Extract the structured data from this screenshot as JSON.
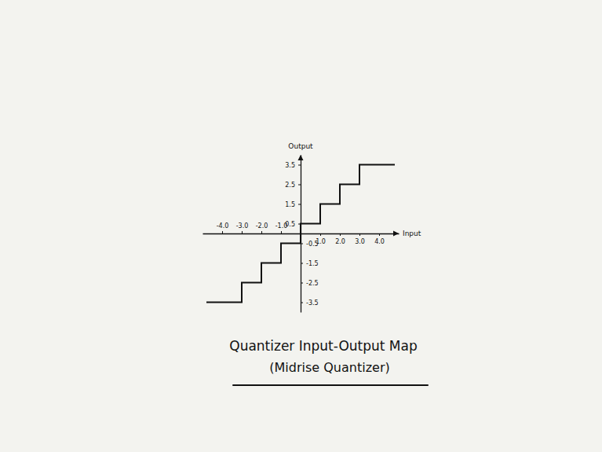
{
  "chart_data": {
    "type": "line",
    "title": "Quantizer Input-Output Map",
    "subtitle": "(Midrise Quantizer)",
    "xlabel": "Input",
    "ylabel": "Output",
    "x": [
      -4.8,
      -3,
      -3,
      -2,
      -2,
      -1,
      -1,
      0,
      0,
      1,
      1,
      2,
      2,
      3,
      3,
      4.8
    ],
    "values": [
      -3.5,
      -3.5,
      -2.5,
      -2.5,
      -1.5,
      -1.5,
      -0.5,
      -0.5,
      0.5,
      0.5,
      1.5,
      1.5,
      2.5,
      2.5,
      3.5,
      3.5
    ],
    "color": "#111111",
    "line_style": "solid",
    "xlim": [
      -5,
      5
    ],
    "ylim": [
      -4,
      4
    ],
    "xticks": [
      {
        "value": -4,
        "label": "-4.0"
      },
      {
        "value": -3,
        "label": "-3.0"
      },
      {
        "value": -2,
        "label": "-2.0"
      },
      {
        "value": -1,
        "label": "-1.0"
      },
      {
        "value": 1,
        "label": "1.0"
      },
      {
        "value": 2,
        "label": "2.0"
      },
      {
        "value": 3,
        "label": "3.0"
      },
      {
        "value": 4,
        "label": "4.0"
      }
    ],
    "yticks": [
      -3.5,
      -2.5,
      -1.5,
      -0.5,
      0.5,
      1.5,
      2.5,
      3.5
    ],
    "grid": false
  }
}
